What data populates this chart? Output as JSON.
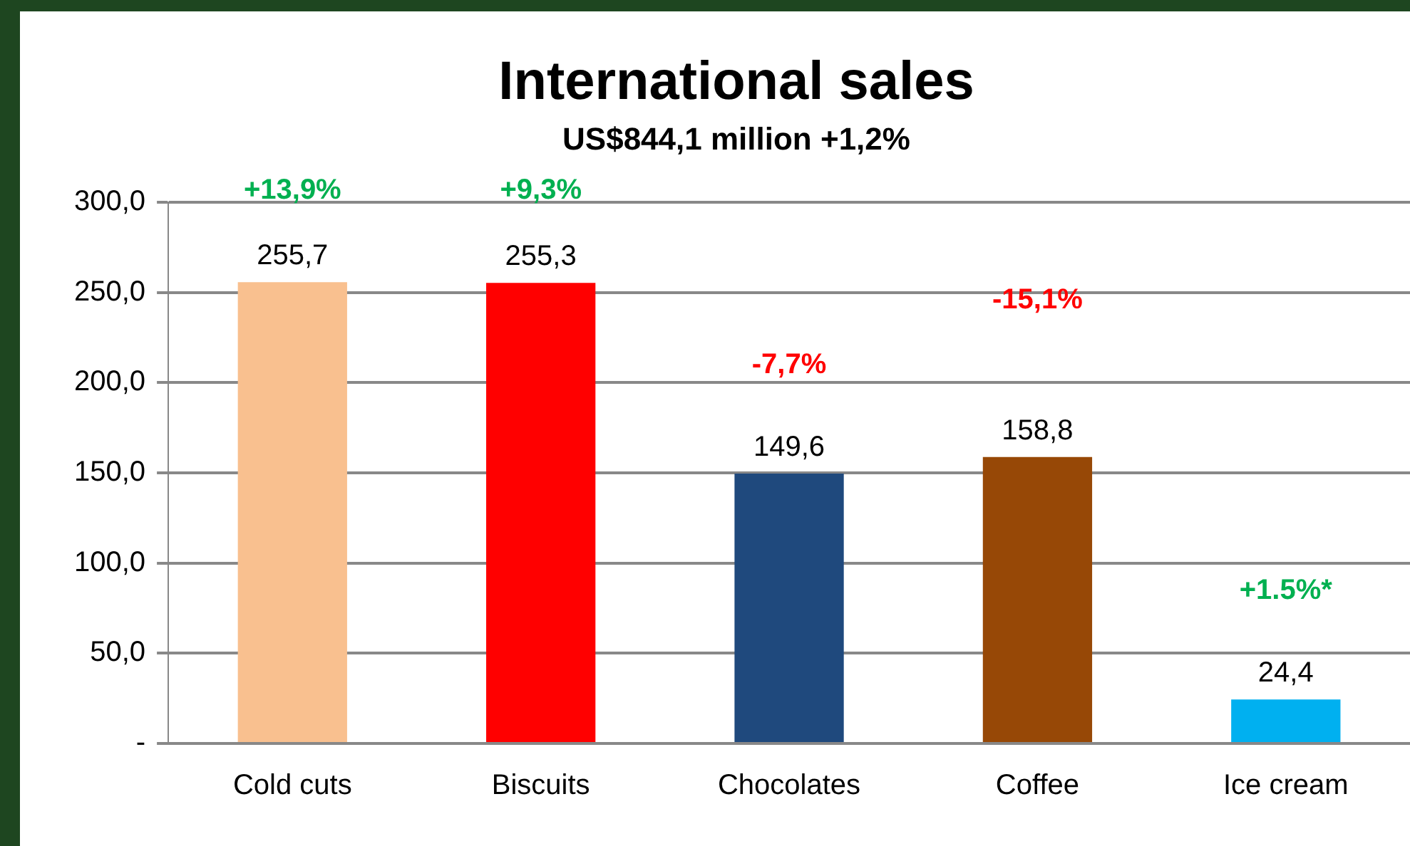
{
  "chart_data": {
    "type": "bar",
    "title": "International sales",
    "subtitle": "US$844,1 million +1,2%",
    "categories": [
      "Cold cuts",
      "Biscuits",
      "Chocolates",
      "Coffee",
      "Ice cream"
    ],
    "values": [
      255.7,
      255.3,
      149.6,
      158.8,
      24.4
    ],
    "colors": [
      "#f9c08f",
      "#ff0000",
      "#1f497d",
      "#974806",
      "#00b0f0"
    ],
    "value_labels": [
      "255,7",
      "255,3",
      "149,6",
      "158,8",
      "24,4"
    ],
    "ylim": [
      0,
      300
    ],
    "yticks": [
      {
        "value": 0,
        "label": "-"
      },
      {
        "value": 50,
        "label": "50,0"
      },
      {
        "value": 100,
        "label": "100,0"
      },
      {
        "value": 150,
        "label": "150,0"
      },
      {
        "value": 200,
        "label": "200,0"
      },
      {
        "value": 250,
        "label": "250,0"
      },
      {
        "value": 300,
        "label": "300,0"
      }
    ],
    "grid": "y",
    "legend": false,
    "annotations": [
      "+13,9%",
      "+9,3%",
      "-7,7%",
      "-15,1%",
      "+1.5%*"
    ]
  }
}
